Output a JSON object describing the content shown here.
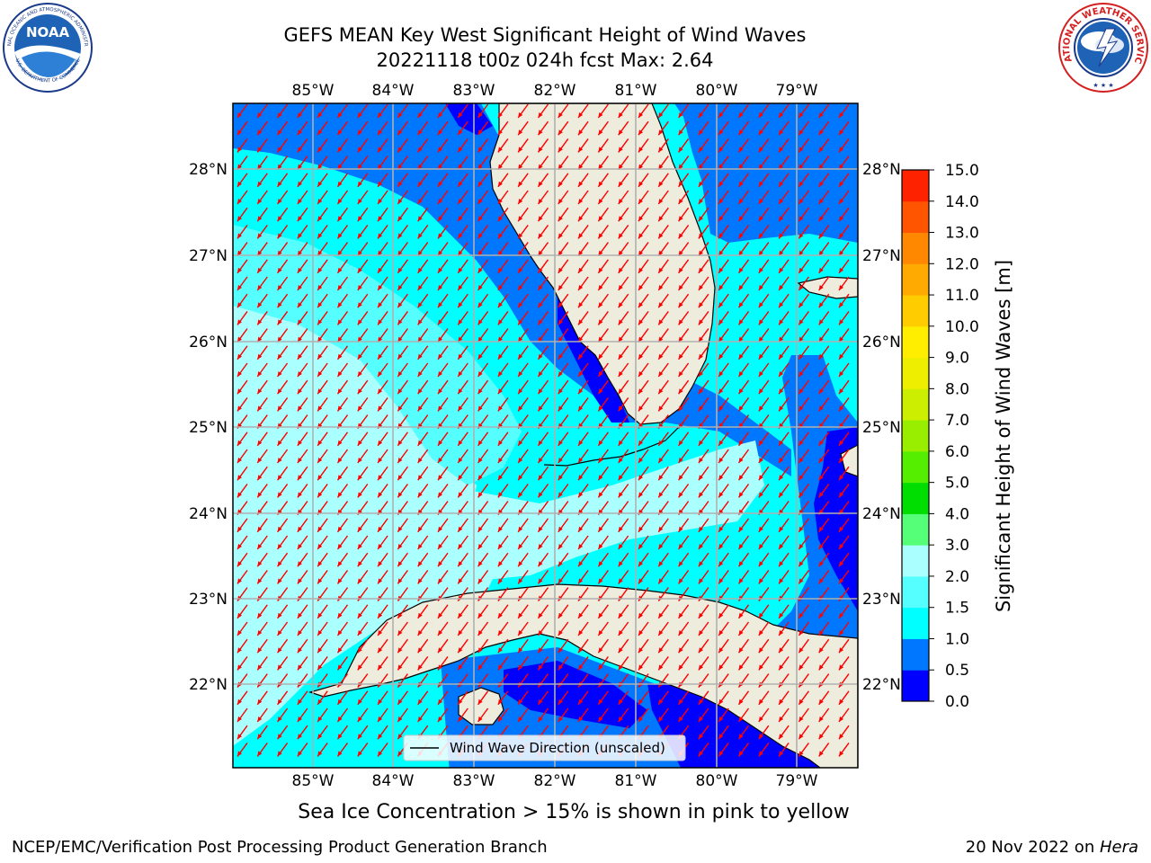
{
  "title": {
    "line1": "GEFS MEAN Key West Significant Height of Wind Waves",
    "line2": "20221118 t00z 024h fcst   Max: 2.64"
  },
  "logos": {
    "left_text": "NOAA",
    "left_ring_top": "NATIONAL OCEANIC AND ATMOSPHERIC ADMINISTRATION",
    "left_ring_bottom": "U.S. DEPARTMENT OF COMMERCE",
    "right_ring": "NATIONAL WEATHER SERVICE"
  },
  "map": {
    "lon_labels": [
      "85°W",
      "84°W",
      "83°W",
      "82°W",
      "81°W",
      "80°W",
      "79°W"
    ],
    "lat_labels": [
      "28°N",
      "27°N",
      "26°N",
      "25°N",
      "24°N",
      "23°N",
      "22°N"
    ],
    "legend_label": "Wind Wave Direction (unscaled)",
    "land_color": "#eeecdd",
    "arrow_color": "#ff0000",
    "grid_color": "#b0b0b0",
    "wave_direction": "toward southwest"
  },
  "colorbar": {
    "title": "Significant Height of Wind Waves [m]",
    "ticks": [
      "0.0",
      "0.5",
      "1.0",
      "1.5",
      "2.0",
      "3.0",
      "4.0",
      "5.0",
      "6.0",
      "7.0",
      "8.0",
      "9.0",
      "10.0",
      "11.0",
      "12.0",
      "13.0",
      "14.0",
      "15.0"
    ],
    "colors": [
      "#0000ff",
      "#0077ff",
      "#00ffff",
      "#55ffff",
      "#aaffff",
      "#55ff77",
      "#00dd00",
      "#55ee00",
      "#99ee00",
      "#ccee00",
      "#eeee00",
      "#ffee00",
      "#ffcc00",
      "#ffaa00",
      "#ff8800",
      "#ff5500",
      "#ff2200"
    ]
  },
  "ice_note": "Sea Ice Concentration > 15% is shown in pink to yellow",
  "footer": {
    "left": "NCEP/EMC/Verification Post Processing Product Generation Branch",
    "right_prefix": "20 Nov 2022 on ",
    "right_host": "Hera"
  }
}
